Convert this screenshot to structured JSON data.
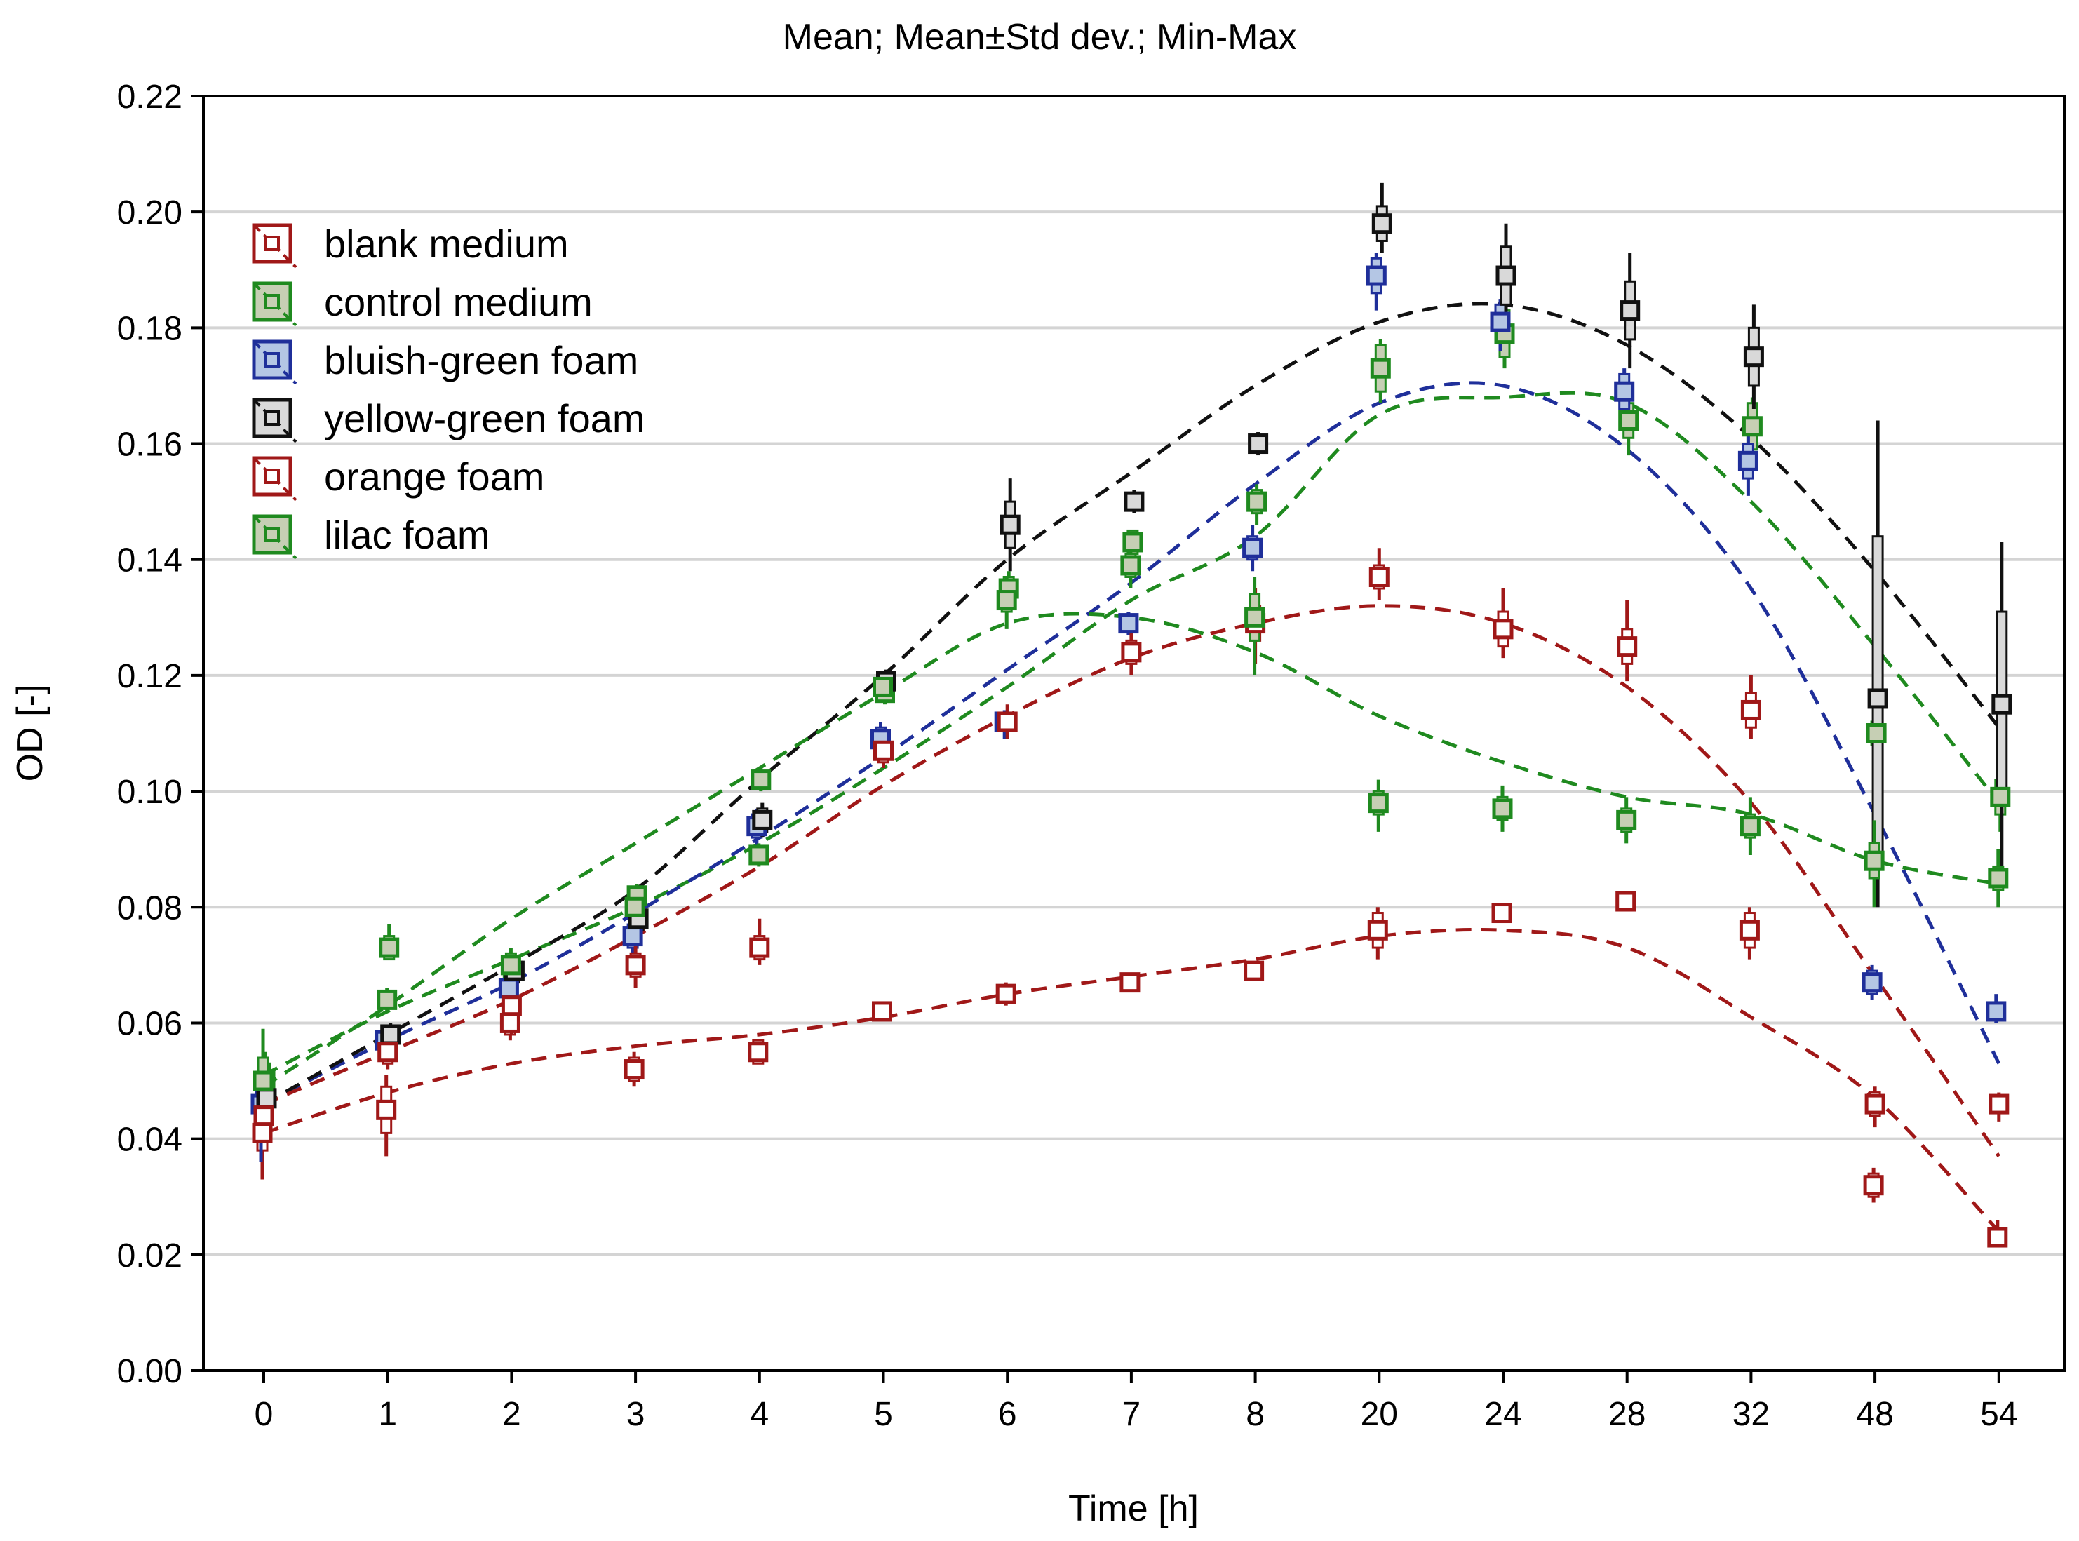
{
  "chart_data": {
    "type": "line",
    "title": "Mean;  Mean±Std dev.; Min-Max",
    "xlabel": "Time [h]",
    "ylabel": "OD [-]",
    "ylim": [
      0,
      0.22
    ],
    "yticks": [
      "0.00",
      "0.02",
      "0.04",
      "0.06",
      "0.08",
      "0.10",
      "0.12",
      "0.14",
      "0.16",
      "0.18",
      "0.20",
      "0.22"
    ],
    "grid": true,
    "legend_position": "top-left",
    "categories": [
      "0",
      "1",
      "2",
      "3",
      "4",
      "5",
      "6",
      "7",
      "8",
      "20",
      "24",
      "28",
      "32",
      "48",
      "54"
    ],
    "series": [
      {
        "name": "blank medium",
        "color": "#a01818",
        "marker_bg": "#ffffff",
        "mean": [
          0.041,
          0.045,
          0.06,
          0.052,
          0.055,
          0.062,
          0.065,
          0.067,
          0.069,
          0.076,
          0.079,
          0.081,
          0.076,
          0.032,
          0.023
        ],
        "min": [
          0.033,
          0.037,
          0.057,
          0.049,
          0.053,
          0.061,
          0.063,
          0.066,
          0.068,
          0.071,
          0.078,
          0.08,
          0.071,
          0.029,
          0.022
        ],
        "max": [
          0.045,
          0.051,
          0.063,
          0.055,
          0.057,
          0.063,
          0.067,
          0.068,
          0.07,
          0.08,
          0.08,
          0.082,
          0.08,
          0.035,
          0.026
        ],
        "sd": [
          0.003,
          0.004,
          0.002,
          0.002,
          0.002,
          0.001,
          0.001,
          0.001,
          0.001,
          0.003,
          0.001,
          0.001,
          0.003,
          0.002,
          0.001
        ],
        "fit": [
          0.041,
          0.048,
          0.053,
          0.056,
          0.058,
          0.061,
          0.065,
          0.068,
          0.071,
          0.075,
          0.076,
          0.073,
          0.061,
          0.047,
          0.024
        ]
      },
      {
        "name": "control medium",
        "color": "#1f8a1f",
        "marker_bg": "#c6cfb4",
        "mean": [
          0.05,
          0.073,
          0.069,
          0.082,
          0.102,
          0.117,
          0.135,
          0.143,
          0.15,
          0.173,
          0.179,
          0.164,
          0.163,
          0.11,
          0.099
        ],
        "min": [
          0.045,
          0.071,
          0.066,
          0.08,
          0.1,
          0.115,
          0.131,
          0.14,
          0.146,
          0.167,
          0.173,
          0.158,
          0.156,
          0.106,
          0.093
        ],
        "max": [
          0.055,
          0.077,
          0.072,
          0.084,
          0.104,
          0.119,
          0.138,
          0.145,
          0.153,
          0.178,
          0.184,
          0.169,
          0.168,
          0.113,
          0.103
        ],
        "sd": [
          0.003,
          0.002,
          0.002,
          0.001,
          0.001,
          0.001,
          0.002,
          0.002,
          0.002,
          0.004,
          0.004,
          0.003,
          0.004,
          0.002,
          0.003
        ],
        "fit": [
          0.051,
          0.062,
          0.071,
          0.08,
          0.091,
          0.104,
          0.118,
          0.133,
          0.144,
          0.165,
          0.168,
          0.167,
          0.15,
          0.125,
          0.098
        ]
      },
      {
        "name": "bluish-green foam",
        "color": "#1f2f9a",
        "marker_bg": "#b4c6e4",
        "mean": [
          0.046,
          0.057,
          0.066,
          0.075,
          0.094,
          0.109,
          0.112,
          0.129,
          0.142,
          0.189,
          0.181,
          0.169,
          0.157,
          0.067,
          0.062
        ],
        "min": [
          0.036,
          0.055,
          0.063,
          0.072,
          0.09,
          0.106,
          0.109,
          0.127,
          0.138,
          0.183,
          0.176,
          0.164,
          0.151,
          0.064,
          0.06
        ],
        "max": [
          0.049,
          0.059,
          0.069,
          0.078,
          0.097,
          0.112,
          0.114,
          0.131,
          0.146,
          0.193,
          0.185,
          0.173,
          0.162,
          0.07,
          0.065
        ],
        "sd": [
          0.003,
          0.001,
          0.002,
          0.002,
          0.002,
          0.002,
          0.001,
          0.001,
          0.002,
          0.003,
          0.003,
          0.003,
          0.003,
          0.002,
          0.001
        ],
        "fit": [
          0.046,
          0.057,
          0.067,
          0.079,
          0.092,
          0.106,
          0.121,
          0.136,
          0.153,
          0.167,
          0.17,
          0.159,
          0.135,
          0.096,
          0.053
        ]
      },
      {
        "name": "yellow-green foam",
        "color": "#111111",
        "marker_bg": "#d9d9d9",
        "mean": [
          0.047,
          0.058,
          0.069,
          0.078,
          0.095,
          0.119,
          0.146,
          0.15,
          0.16,
          0.198,
          0.189,
          0.183,
          0.175,
          0.116,
          0.115
        ],
        "min": [
          0.044,
          0.056,
          0.066,
          0.075,
          0.092,
          0.117,
          0.138,
          0.148,
          0.158,
          0.193,
          0.178,
          0.173,
          0.166,
          0.08,
          0.087
        ],
        "max": [
          0.05,
          0.06,
          0.072,
          0.081,
          0.098,
          0.121,
          0.154,
          0.152,
          0.162,
          0.205,
          0.198,
          0.193,
          0.184,
          0.164,
          0.143
        ],
        "sd": [
          0.002,
          0.001,
          0.002,
          0.002,
          0.002,
          0.001,
          0.004,
          0.001,
          0.001,
          0.003,
          0.005,
          0.005,
          0.005,
          0.028,
          0.016
        ],
        "fit": [
          0.046,
          0.058,
          0.07,
          0.083,
          0.102,
          0.12,
          0.14,
          0.155,
          0.17,
          0.181,
          0.184,
          0.177,
          0.161,
          0.138,
          0.111
        ]
      },
      {
        "name": "orange foam",
        "color": "#a01818",
        "marker_bg": "#ffffff",
        "mean": [
          0.044,
          0.055,
          0.063,
          0.07,
          0.073,
          0.107,
          0.112,
          0.124,
          0.129,
          0.137,
          0.128,
          0.125,
          0.114,
          0.046,
          0.046
        ],
        "min": [
          0.04,
          0.052,
          0.058,
          0.066,
          0.07,
          0.104,
          0.109,
          0.12,
          0.122,
          0.133,
          0.123,
          0.119,
          0.109,
          0.042,
          0.043
        ],
        "max": [
          0.047,
          0.058,
          0.066,
          0.074,
          0.078,
          0.11,
          0.115,
          0.128,
          0.135,
          0.142,
          0.135,
          0.133,
          0.12,
          0.049,
          0.048
        ],
        "sd": [
          0.002,
          0.002,
          0.002,
          0.002,
          0.002,
          0.002,
          0.001,
          0.002,
          0.003,
          0.002,
          0.003,
          0.003,
          0.003,
          0.002,
          0.001
        ],
        "fit": [
          0.046,
          0.055,
          0.064,
          0.075,
          0.087,
          0.101,
          0.113,
          0.123,
          0.129,
          0.132,
          0.129,
          0.118,
          0.098,
          0.068,
          0.037
        ]
      },
      {
        "name": "lilac foam",
        "color": "#1f8a1f",
        "marker_bg": "#c6cfb4",
        "mean": [
          0.05,
          0.064,
          0.07,
          0.08,
          0.089,
          0.118,
          0.133,
          0.139,
          0.13,
          0.098,
          0.097,
          0.095,
          0.094,
          0.088,
          0.085
        ],
        "min": [
          0.044,
          0.062,
          0.066,
          0.077,
          0.087,
          0.116,
          0.128,
          0.135,
          0.12,
          0.093,
          0.093,
          0.091,
          0.089,
          0.08,
          0.08
        ],
        "max": [
          0.059,
          0.066,
          0.073,
          0.083,
          0.091,
          0.12,
          0.137,
          0.144,
          0.137,
          0.102,
          0.101,
          0.099,
          0.099,
          0.095,
          0.09
        ],
        "sd": [
          0.004,
          0.001,
          0.002,
          0.002,
          0.001,
          0.001,
          0.002,
          0.002,
          0.004,
          0.002,
          0.002,
          0.002,
          0.002,
          0.003,
          0.002
        ],
        "fit": [
          0.049,
          0.063,
          0.078,
          0.091,
          0.104,
          0.117,
          0.129,
          0.13,
          0.124,
          0.113,
          0.105,
          0.099,
          0.096,
          0.088,
          0.084
        ]
      }
    ]
  }
}
